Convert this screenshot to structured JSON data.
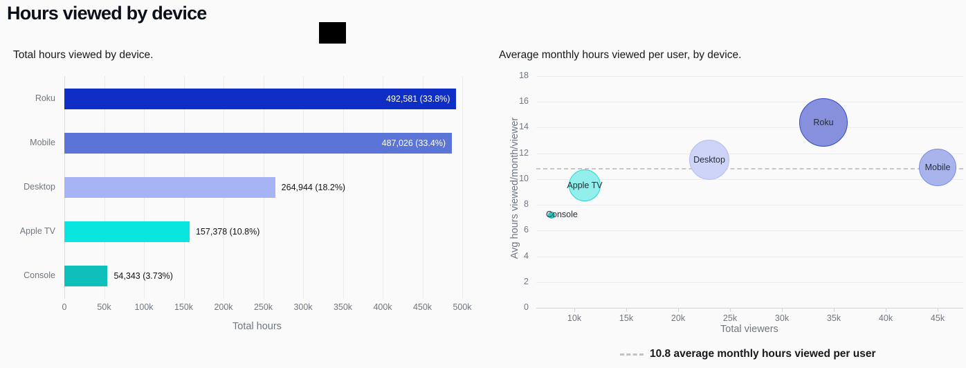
{
  "header": {
    "title": "Hours viewed by device"
  },
  "colors": {
    "background": "#fafafa",
    "title_text": "#0c1019",
    "axis_text": "#6f7680",
    "gridline": "#e9eaee",
    "axis_line": "#ced3da",
    "reference_dash": "#c6c6c6"
  },
  "chart_data": [
    {
      "type": "bar",
      "orientation": "horizontal",
      "title": "Total hours viewed by device.",
      "xlabel": "Total hours",
      "categories": [
        "Roku",
        "Mobile",
        "Desktop",
        "Apple TV",
        "Console"
      ],
      "values": [
        492581,
        487026,
        264944,
        157378,
        54343
      ],
      "value_labels": [
        "492,581 (33.8%)",
        "487,026 (33.4%)",
        "264,944 (18.2%)",
        "157,378 (10.8%)",
        "54,343 (3.73%)"
      ],
      "label_inside": [
        true,
        true,
        false,
        false,
        false
      ],
      "bar_colors": [
        "#0e2ec5",
        "#5b74d8",
        "#a6b3f4",
        "#0ae5e0",
        "#0fbfba"
      ],
      "xlim": [
        0,
        500000
      ],
      "xtick_values": [
        0,
        50000,
        100000,
        150000,
        200000,
        250000,
        300000,
        350000,
        400000,
        450000,
        500000
      ],
      "xtick_labels": [
        "0",
        "50k",
        "100k",
        "150k",
        "200k",
        "250k",
        "300k",
        "350k",
        "400k",
        "450k",
        "500k"
      ],
      "grid": "vertical"
    },
    {
      "type": "scatter",
      "subtype": "bubble",
      "title": "Average monthly hours viewed per user, by device.",
      "xlabel": "Total viewers",
      "ylabel": "Avg hours viewed/month/viewer",
      "xlim": [
        7000,
        47500
      ],
      "ylim": [
        0,
        18
      ],
      "xtick_values": [
        10000,
        15000,
        20000,
        25000,
        30000,
        35000,
        40000,
        45000
      ],
      "xtick_labels": [
        "10k",
        "15k",
        "20k",
        "25k",
        "30k",
        "35k",
        "40k",
        "45k"
      ],
      "ytick_values": [
        0,
        2,
        4,
        6,
        8,
        10,
        12,
        14,
        16,
        18
      ],
      "ytick_labels": [
        "0",
        "2",
        "4",
        "6",
        "8",
        "10",
        "12",
        "14",
        "16",
        "18"
      ],
      "grid": "horizontal",
      "points": [
        {
          "name": "Apple TV",
          "x": 11000,
          "y": 9.5,
          "r": 23,
          "fill": "#93efeb",
          "stroke": "#2bd8d2",
          "label_placement": "center"
        },
        {
          "name": "Desktop",
          "x": 23000,
          "y": 11.5,
          "r": 29,
          "fill": "#cdd4f8",
          "stroke": "#b4bef0",
          "label_placement": "center"
        },
        {
          "name": "Roku",
          "x": 34000,
          "y": 14.4,
          "r": 35,
          "fill": "#8690dc",
          "stroke": "#3349c8",
          "label_placement": "center"
        },
        {
          "name": "Mobile",
          "x": 45000,
          "y": 10.9,
          "r": 27,
          "fill": "#a9b4ec",
          "stroke": "#7b8ce0",
          "label_placement": "center"
        },
        {
          "name": "Console",
          "x": 7800,
          "y": 7.2,
          "r": 5,
          "fill": "#2fc6c0",
          "stroke": "#18b5ae",
          "label_placement": "right"
        }
      ],
      "reference_line": {
        "y": 10.8,
        "style": "dashed",
        "color": "#c6c6c6",
        "legend": "10.8 average monthly hours viewed per user"
      }
    }
  ]
}
